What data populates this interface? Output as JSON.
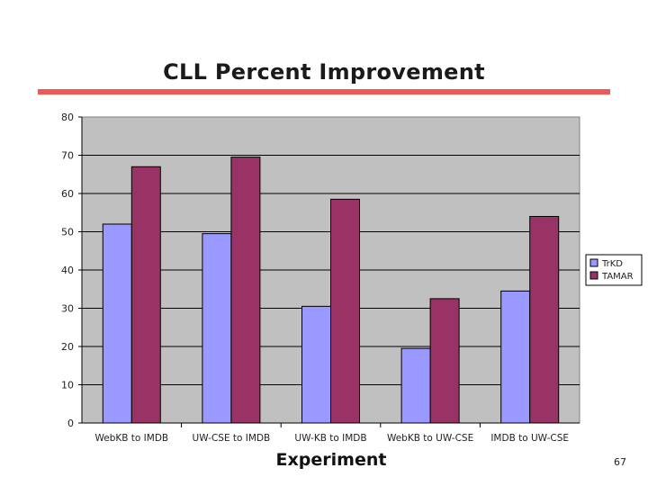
{
  "slide": {
    "title": "CLL Percent Improvement",
    "page_number": "67",
    "rule_color": "#ee5a5a"
  },
  "chart_data": {
    "type": "bar",
    "title": "",
    "xlabel": "Experiment",
    "ylabel": "",
    "ylim": [
      0,
      80
    ],
    "yticks": [
      0,
      10,
      20,
      30,
      40,
      50,
      60,
      70,
      80
    ],
    "grid": true,
    "legend_position": "right",
    "plot_background": "#c0c0c0",
    "categories": [
      "WebKB to IMDB",
      "UW-CSE to IMDB",
      "UW-KB to IMDB",
      "WebKB to UW-CSE",
      "IMDB to UW-CSE"
    ],
    "series": [
      {
        "name": "TrKD",
        "color": "#9999ff",
        "values": [
          52,
          49.5,
          30.5,
          19.5,
          34.5
        ]
      },
      {
        "name": "TAMAR",
        "color": "#993366",
        "values": [
          67,
          69.5,
          58.5,
          32.5,
          54
        ]
      }
    ]
  }
}
